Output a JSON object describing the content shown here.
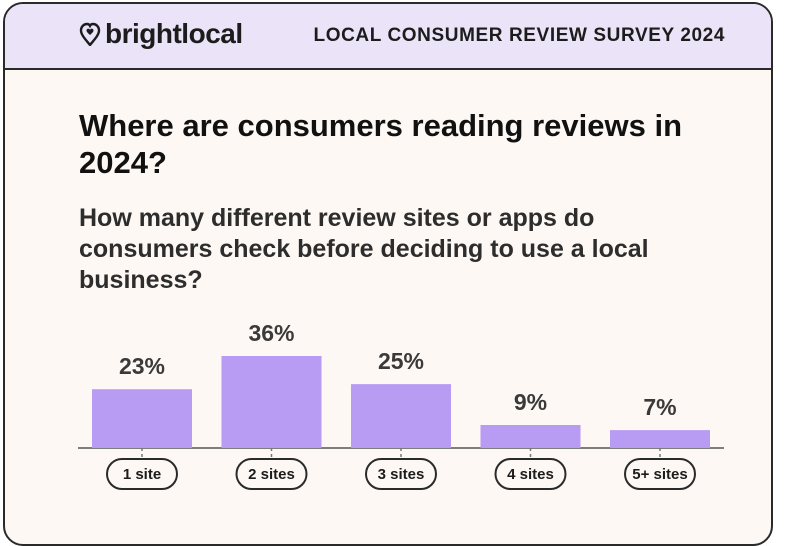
{
  "header": {
    "brand": "brightlocal",
    "survey_title": "LOCAL CONSUMER REVIEW SURVEY 2024"
  },
  "headline": "Where are consumers reading reviews in 2024?",
  "question": "How many different review sites or apps do consumers check before deciding to use a local business?",
  "colors": {
    "bar": "#b89bf3",
    "header_bg": "#ebe3f7",
    "card_bg": "#fdf8f3"
  },
  "chart_data": {
    "type": "bar",
    "categories": [
      "1 site",
      "2 sites",
      "3 sites",
      "4 sites",
      "5+ sites"
    ],
    "values": [
      23,
      36,
      25,
      9,
      7
    ],
    "data_labels": [
      "23%",
      "36%",
      "25%",
      "9%",
      "7%"
    ],
    "ylim": [
      0,
      36
    ],
    "grid": false,
    "legend": "none"
  }
}
